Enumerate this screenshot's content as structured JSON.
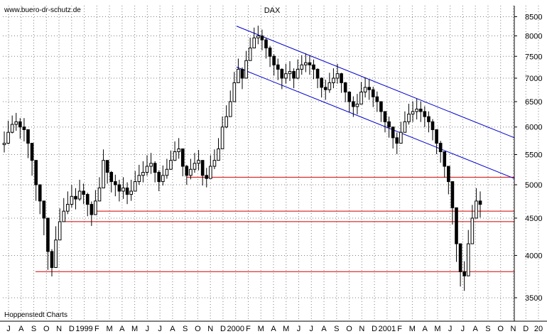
{
  "header": {
    "source_url": "www.buero-dr-schutz.de",
    "credit": "Hoppenstedt Charts"
  },
  "chart_data": {
    "type": "candlestick",
    "title": "DAX",
    "y_axis": {
      "scale": "log",
      "ticks": [
        3500,
        4000,
        4500,
        5000,
        5500,
        6000,
        6500,
        7000,
        7500,
        8000,
        8500
      ],
      "range": [
        3250,
        8800
      ]
    },
    "x_axis": {
      "labels": [
        "J",
        "A",
        "S",
        "O",
        "N",
        "D",
        "1999",
        "F",
        "M",
        "A",
        "M",
        "J",
        "J",
        "A",
        "S",
        "O",
        "N",
        "D",
        "2000",
        "F",
        "M",
        "A",
        "M",
        "J",
        "J",
        "A",
        "S",
        "O",
        "N",
        "D",
        "2001",
        "F",
        "M",
        "A",
        "M",
        "J",
        "J",
        "A",
        "S",
        "O",
        "N",
        "D",
        "20"
      ]
    },
    "series": [
      {
        "values": [
          5700,
          5900,
          6050,
          6100,
          6000,
          5950,
          5700,
          5400,
          5000,
          4750,
          4500,
          4050,
          3850,
          4200,
          4450,
          4600,
          4700,
          4820,
          4780,
          4900,
          4850,
          4700,
          4550,
          4750,
          4950,
          5400,
          5200,
          5050,
          5000,
          4900,
          4950,
          4850,
          4900,
          5050,
          5150,
          5200,
          5300,
          5350,
          5200,
          5050,
          5150,
          5250,
          5400,
          5550,
          5600,
          5300,
          5150,
          5250,
          5350,
          5400,
          5150,
          5100,
          5300,
          5400,
          5600,
          6000,
          6200,
          6500,
          6900,
          7200,
          7000,
          7400,
          7700,
          7950,
          8000,
          7900,
          7700,
          7500,
          7300,
          7200,
          7000,
          7100,
          7150,
          7000,
          7200,
          7300,
          7350,
          7300,
          7200,
          7000,
          6800,
          6750,
          6900,
          7000,
          7100,
          6900,
          6700,
          6500,
          6400,
          6450,
          6700,
          6800,
          6750,
          6600,
          6500,
          6300,
          6100,
          6000,
          5800,
          5700,
          5900,
          6100,
          6250,
          6300,
          6350,
          6300,
          6200,
          6100,
          5950,
          5700,
          5550,
          5300,
          5050,
          4650,
          4150,
          3800,
          3750,
          4150,
          4500,
          4750,
          4700
        ],
        "ranges": [
          [
            5650,
            5800
          ],
          [
            5800,
            6000
          ],
          [
            6000,
            6100
          ],
          [
            6050,
            6150
          ],
          [
            5900,
            6050
          ],
          [
            5850,
            6050
          ],
          [
            5550,
            5800
          ],
          [
            5250,
            5500
          ],
          [
            4850,
            5100
          ],
          [
            4650,
            4850
          ],
          [
            4350,
            4600
          ],
          [
            3900,
            4150
          ],
          [
            3820,
            4000
          ],
          [
            4050,
            4300
          ],
          [
            4350,
            4550
          ],
          [
            4550,
            4700
          ],
          [
            4650,
            4800
          ],
          [
            4750,
            4900
          ],
          [
            4720,
            4850
          ],
          [
            4850,
            4980
          ],
          [
            4800,
            4920
          ],
          [
            4620,
            4780
          ],
          [
            4480,
            4650
          ],
          [
            4680,
            4820
          ],
          [
            4900,
            5020
          ],
          [
            5300,
            5480
          ],
          [
            5120,
            5280
          ],
          [
            4980,
            5120
          ],
          [
            4920,
            5060
          ],
          [
            4840,
            4980
          ],
          [
            4880,
            5020
          ],
          [
            4800,
            4940
          ],
          [
            4850,
            4980
          ],
          [
            5000,
            5120
          ],
          [
            5100,
            5220
          ],
          [
            5140,
            5280
          ],
          [
            5250,
            5380
          ],
          [
            5280,
            5420
          ],
          [
            5140,
            5280
          ],
          [
            5000,
            5130
          ],
          [
            5090,
            5210
          ],
          [
            5200,
            5320
          ],
          [
            5350,
            5460
          ],
          [
            5500,
            5620
          ],
          [
            5540,
            5680
          ],
          [
            5240,
            5380
          ],
          [
            5100,
            5220
          ],
          [
            5190,
            5320
          ],
          [
            5300,
            5420
          ],
          [
            5340,
            5470
          ],
          [
            5090,
            5230
          ],
          [
            5060,
            5170
          ],
          [
            5250,
            5380
          ],
          [
            5360,
            5480
          ],
          [
            5550,
            5680
          ],
          [
            5900,
            6080
          ],
          [
            6100,
            6300
          ],
          [
            6400,
            6600
          ],
          [
            6800,
            7000
          ],
          [
            7100,
            7300
          ],
          [
            6900,
            7100
          ],
          [
            7300,
            7480
          ],
          [
            7600,
            7800
          ],
          [
            7880,
            8050
          ],
          [
            7950,
            8100
          ],
          [
            7800,
            8000
          ],
          [
            7600,
            7800
          ],
          [
            7400,
            7600
          ],
          [
            7200,
            7400
          ],
          [
            7100,
            7300
          ],
          [
            6900,
            7080
          ],
          [
            7020,
            7180
          ],
          [
            7080,
            7240
          ],
          [
            6920,
            7080
          ],
          [
            7120,
            7280
          ],
          [
            7220,
            7380
          ],
          [
            7280,
            7420
          ],
          [
            7220,
            7380
          ],
          [
            7120,
            7280
          ],
          [
            6920,
            7080
          ],
          [
            6720,
            6880
          ],
          [
            6670,
            6830
          ],
          [
            6820,
            6980
          ],
          [
            6920,
            7080
          ],
          [
            7020,
            7180
          ],
          [
            6820,
            6980
          ],
          [
            6620,
            6780
          ],
          [
            6420,
            6580
          ],
          [
            6320,
            6480
          ],
          [
            6370,
            6530
          ],
          [
            6620,
            6780
          ],
          [
            6720,
            6880
          ],
          [
            6670,
            6830
          ],
          [
            6520,
            6680
          ],
          [
            6420,
            6580
          ],
          [
            6220,
            6380
          ],
          [
            6020,
            6180
          ],
          [
            5920,
            6080
          ],
          [
            5720,
            5880
          ],
          [
            5620,
            5780
          ],
          [
            5820,
            5980
          ],
          [
            6020,
            6180
          ],
          [
            6170,
            6330
          ],
          [
            6220,
            6380
          ],
          [
            6270,
            6430
          ],
          [
            6220,
            6380
          ],
          [
            6120,
            6280
          ],
          [
            6020,
            6180
          ],
          [
            5870,
            6030
          ],
          [
            5620,
            5780
          ],
          [
            5470,
            5630
          ],
          [
            5220,
            5380
          ],
          [
            4950,
            5150
          ],
          [
            4500,
            4800
          ],
          [
            4000,
            4300
          ],
          [
            3700,
            3900
          ],
          [
            3650,
            3850
          ],
          [
            4050,
            4250
          ],
          [
            4400,
            4600
          ],
          [
            4650,
            4850
          ],
          [
            4600,
            4800
          ]
        ]
      }
    ],
    "support_lines": [
      5120,
      4600,
      4450,
      3800
    ],
    "channel_lines": [
      {
        "start": 8250,
        "end": 5800
      },
      {
        "start": 7250,
        "end": 5100
      }
    ],
    "colors": {
      "candle": "#000000",
      "grid": "#7f7f7f",
      "support": "#d40000",
      "channel": "#0000cc"
    }
  }
}
